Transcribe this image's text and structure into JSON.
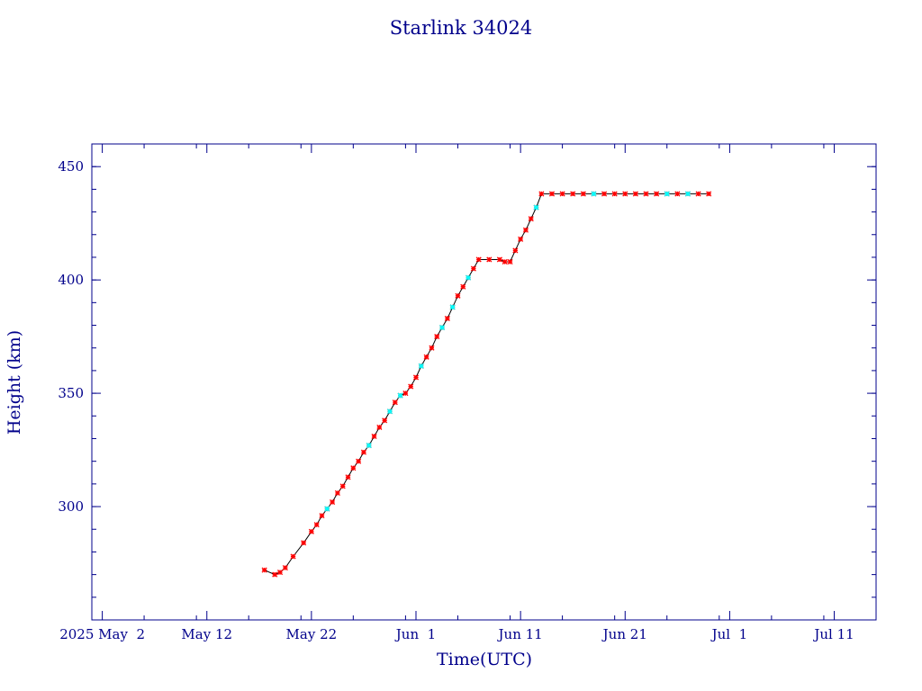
{
  "chart_data": {
    "type": "line",
    "title": "Starlink 34024",
    "xlabel": "Time(UTC)",
    "ylabel": "Height (km)",
    "xlim": [
      "2025-05-01",
      "2025-07-15"
    ],
    "ylim": [
      250,
      460
    ],
    "x_ticks": [
      {
        "date": "2025-05-02",
        "label": "2025 May  2"
      },
      {
        "date": "2025-05-12",
        "label": "May 12"
      },
      {
        "date": "2025-05-22",
        "label": "May 22"
      },
      {
        "date": "2025-06-01",
        "label": "Jun  1"
      },
      {
        "date": "2025-06-11",
        "label": "Jun 11"
      },
      {
        "date": "2025-06-21",
        "label": "Jun 21"
      },
      {
        "date": "2025-07-01",
        "label": "Jul  1"
      },
      {
        "date": "2025-07-11",
        "label": "Jul 11"
      }
    ],
    "y_ticks": [
      300,
      350,
      400,
      450
    ],
    "grid": false,
    "colors": {
      "line": "#000000",
      "marker": "#ff0000",
      "marker_alt": "#00ffff",
      "axes": "#00008b"
    },
    "series": [
      {
        "values": [
          [
            "2025-05-17T12:00",
            272
          ],
          [
            "2025-05-18T12:00",
            270
          ],
          [
            "2025-05-19T00:00",
            271
          ],
          [
            "2025-05-19T12:00",
            273
          ],
          [
            "2025-05-20T06:00",
            278
          ],
          [
            "2025-05-21T06:00",
            284
          ],
          [
            "2025-05-22T00:00",
            289
          ],
          [
            "2025-05-22T12:00",
            292
          ],
          [
            "2025-05-23T00:00",
            296
          ],
          [
            "2025-05-23T12:00",
            299
          ],
          [
            "2025-05-24T00:00",
            302
          ],
          [
            "2025-05-24T12:00",
            306
          ],
          [
            "2025-05-25T00:00",
            309
          ],
          [
            "2025-05-25T12:00",
            313
          ],
          [
            "2025-05-26T00:00",
            317
          ],
          [
            "2025-05-26T12:00",
            320
          ],
          [
            "2025-05-27T00:00",
            324
          ],
          [
            "2025-05-27T12:00",
            327
          ],
          [
            "2025-05-28T00:00",
            331
          ],
          [
            "2025-05-28T12:00",
            335
          ],
          [
            "2025-05-29T00:00",
            338
          ],
          [
            "2025-05-29T12:00",
            342
          ],
          [
            "2025-05-30T00:00",
            346
          ],
          [
            "2025-05-30T12:00",
            349
          ],
          [
            "2025-05-31T00:00",
            350
          ],
          [
            "2025-05-31T12:00",
            353
          ],
          [
            "2025-06-01T00:00",
            357
          ],
          [
            "2025-06-01T12:00",
            362
          ],
          [
            "2025-06-02T00:00",
            366
          ],
          [
            "2025-06-02T12:00",
            370
          ],
          [
            "2025-06-03T00:00",
            375
          ],
          [
            "2025-06-03T12:00",
            379
          ],
          [
            "2025-06-04T00:00",
            383
          ],
          [
            "2025-06-04T12:00",
            388
          ],
          [
            "2025-06-05T00:00",
            393
          ],
          [
            "2025-06-05T12:00",
            397
          ],
          [
            "2025-06-06T00:00",
            401
          ],
          [
            "2025-06-06T12:00",
            405
          ],
          [
            "2025-06-07T00:00",
            409
          ],
          [
            "2025-06-08T00:00",
            409
          ],
          [
            "2025-06-09T00:00",
            409
          ],
          [
            "2025-06-09T12:00",
            408
          ],
          [
            "2025-06-10T00:00",
            408
          ],
          [
            "2025-06-10T12:00",
            413
          ],
          [
            "2025-06-11T00:00",
            418
          ],
          [
            "2025-06-11T12:00",
            422
          ],
          [
            "2025-06-12T00:00",
            427
          ],
          [
            "2025-06-12T12:00",
            432
          ],
          [
            "2025-06-13T00:00",
            438
          ],
          [
            "2025-06-14T00:00",
            438
          ],
          [
            "2025-06-15T00:00",
            438
          ],
          [
            "2025-06-16T00:00",
            438
          ],
          [
            "2025-06-17T00:00",
            438
          ],
          [
            "2025-06-18T00:00",
            438
          ],
          [
            "2025-06-19T00:00",
            438
          ],
          [
            "2025-06-20T00:00",
            438
          ],
          [
            "2025-06-21T00:00",
            438
          ],
          [
            "2025-06-22T00:00",
            438
          ],
          [
            "2025-06-23T00:00",
            438
          ],
          [
            "2025-06-24T00:00",
            438
          ],
          [
            "2025-06-25T00:00",
            438
          ],
          [
            "2025-06-26T00:00",
            438
          ],
          [
            "2025-06-27T00:00",
            438
          ],
          [
            "2025-06-28T00:00",
            438
          ],
          [
            "2025-06-29T00:00",
            438
          ]
        ],
        "highlighted_values": [
          [
            "2025-05-23T12:00",
            299
          ],
          [
            "2025-05-27T12:00",
            327
          ],
          [
            "2025-05-29T12:00",
            342
          ],
          [
            "2025-05-30T12:00",
            349
          ],
          [
            "2025-06-01T12:00",
            362
          ],
          [
            "2025-06-03T12:00",
            379
          ],
          [
            "2025-06-04T12:00",
            388
          ],
          [
            "2025-06-06T00:00",
            401
          ],
          [
            "2025-06-12T12:00",
            432
          ],
          [
            "2025-06-18T00:00",
            438
          ],
          [
            "2025-06-25T00:00",
            438
          ],
          [
            "2025-06-27T00:00",
            438
          ]
        ]
      }
    ]
  }
}
